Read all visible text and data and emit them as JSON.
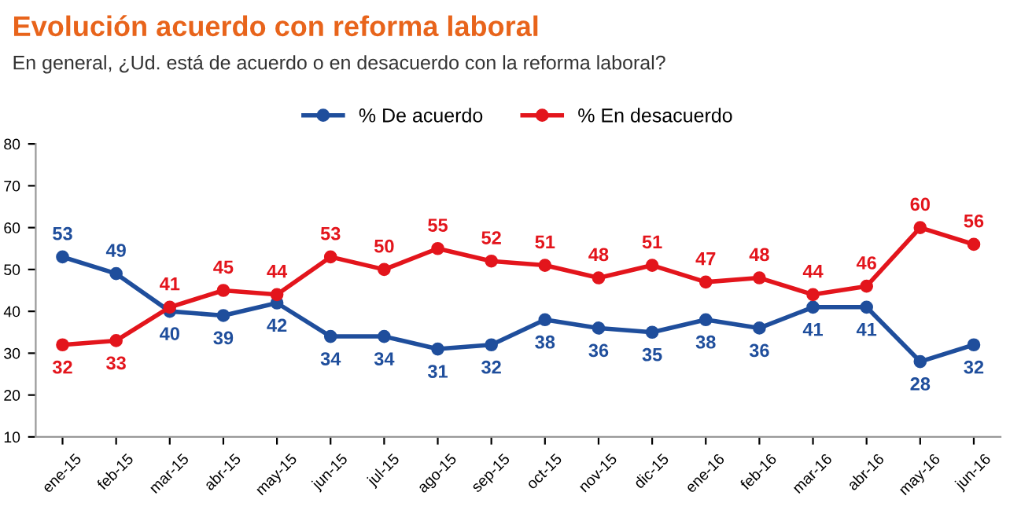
{
  "chart_data": {
    "type": "line",
    "title": "Evolución acuerdo con reforma laboral",
    "subtitle": "En general, ¿Ud. está de acuerdo o en desacuerdo con la reforma laboral?",
    "categories": [
      "ene-15",
      "feb-15",
      "mar-15",
      "abr-15",
      "may-15",
      "jun-15",
      "jul-15",
      "ago-15",
      "sep-15",
      "oct-15",
      "nov-15",
      "dic-15",
      "ene-16",
      "feb-16",
      "mar-16",
      "abr-16",
      "may-16",
      "jun-16"
    ],
    "series": [
      {
        "name": "% De acuerdo",
        "color": "#1f4e9c",
        "values": [
          53,
          49,
          40,
          39,
          42,
          34,
          34,
          31,
          32,
          38,
          36,
          35,
          38,
          36,
          41,
          41,
          28,
          32
        ]
      },
      {
        "name": "% En desacuerdo",
        "color": "#e3151c",
        "values": [
          32,
          33,
          41,
          45,
          44,
          53,
          50,
          55,
          52,
          51,
          48,
          51,
          47,
          48,
          44,
          46,
          60,
          56
        ]
      }
    ],
    "ylim": [
      10,
      80
    ],
    "yticks": [
      10,
      20,
      30,
      40,
      50,
      60,
      70,
      80
    ],
    "grid": false,
    "legend": "top",
    "marker": "circle",
    "line_style": "solid",
    "data_labels": true
  }
}
